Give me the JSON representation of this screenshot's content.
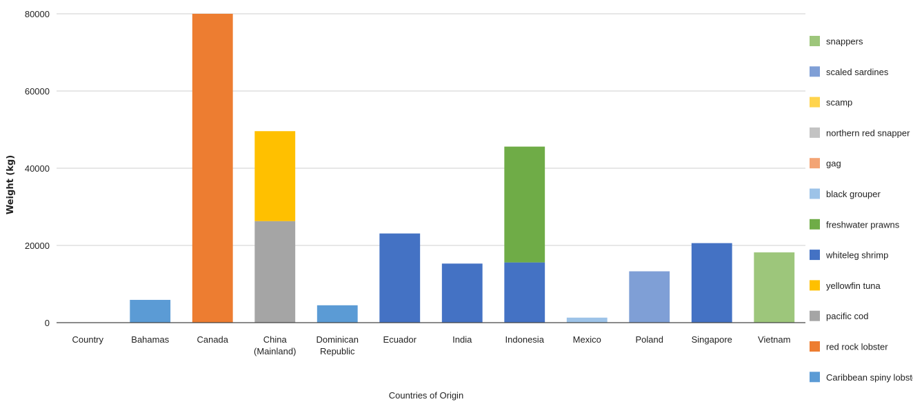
{
  "chart_data": {
    "type": "bar",
    "stacked": true,
    "xlabel": "Countries of Origin",
    "ylabel": "Weight (kg)",
    "ylim": [
      0,
      80000
    ],
    "yticks": [
      "0",
      "20000",
      "40000",
      "60000",
      "80000"
    ],
    "grid": "horizontal",
    "legend_position": "right",
    "categories": [
      [
        "Country"
      ],
      [
        "Bahamas"
      ],
      [
        "Canada"
      ],
      [
        "China",
        "(Mainland)"
      ],
      [
        "Dominican",
        "Republic"
      ],
      [
        "Ecuador"
      ],
      [
        "India"
      ],
      [
        "Indonesia"
      ],
      [
        "Mexico"
      ],
      [
        "Poland"
      ],
      [
        "Singapore"
      ],
      [
        "Vietnam"
      ]
    ],
    "series": [
      {
        "name": "snappers",
        "color": "#9dc67b",
        "values": [
          0,
          0,
          0,
          0,
          0,
          0,
          0,
          0,
          0,
          0,
          0,
          18200
        ]
      },
      {
        "name": "scaled sardines",
        "color": "#7f9fd6",
        "values": [
          0,
          0,
          0,
          0,
          0,
          0,
          0,
          0,
          0,
          13300,
          0,
          0
        ]
      },
      {
        "name": "scamp",
        "color": "#ffd44d",
        "values": [
          0,
          0,
          0,
          0,
          0,
          0,
          0,
          0,
          0,
          0,
          0,
          0
        ]
      },
      {
        "name": "northern red snapper",
        "color": "#c3c3c3",
        "values": [
          0,
          0,
          0,
          0,
          0,
          0,
          0,
          0,
          0,
          0,
          0,
          0
        ]
      },
      {
        "name": "gag",
        "color": "#f3a474",
        "values": [
          0,
          0,
          0,
          0,
          0,
          0,
          0,
          0,
          0,
          0,
          0,
          0
        ]
      },
      {
        "name": "black grouper",
        "color": "#9dc3e8",
        "values": [
          0,
          0,
          0,
          0,
          0,
          0,
          0,
          0,
          1300,
          0,
          0,
          0
        ]
      },
      {
        "name": "freshwater prawns",
        "color": "#6fac47",
        "values": [
          0,
          0,
          0,
          0,
          0,
          0,
          0,
          30000,
          0,
          0,
          0,
          0
        ]
      },
      {
        "name": "whiteleg shrimp",
        "color": "#4472c4",
        "values": [
          0,
          0,
          0,
          0,
          0,
          23100,
          15300,
          15600,
          0,
          0,
          20600,
          0
        ]
      },
      {
        "name": "yellowfin tuna",
        "color": "#ffc000",
        "values": [
          0,
          0,
          0,
          23300,
          0,
          0,
          0,
          0,
          0,
          0,
          0,
          0
        ]
      },
      {
        "name": "pacific cod",
        "color": "#a5a5a5",
        "values": [
          0,
          0,
          0,
          26300,
          0,
          0,
          0,
          0,
          0,
          0,
          0,
          0
        ]
      },
      {
        "name": "red rock lobster",
        "color": "#ed7d31",
        "values": [
          0,
          0,
          80000,
          0,
          0,
          0,
          0,
          0,
          0,
          0,
          0,
          0
        ]
      },
      {
        "name": "Caribbean spiny lobster",
        "color": "#5b9bd5",
        "values": [
          0,
          5900,
          0,
          0,
          4500,
          0,
          0,
          0,
          0,
          0,
          0,
          0
        ]
      }
    ],
    "stack_order_bottom_to_top": [
      "Caribbean spiny lobster",
      "red rock lobster",
      "pacific cod",
      "yellowfin tuna",
      "whiteleg shrimp",
      "freshwater prawns",
      "black grouper",
      "gag",
      "northern red snapper",
      "scamp",
      "scaled sardines",
      "snappers"
    ]
  }
}
